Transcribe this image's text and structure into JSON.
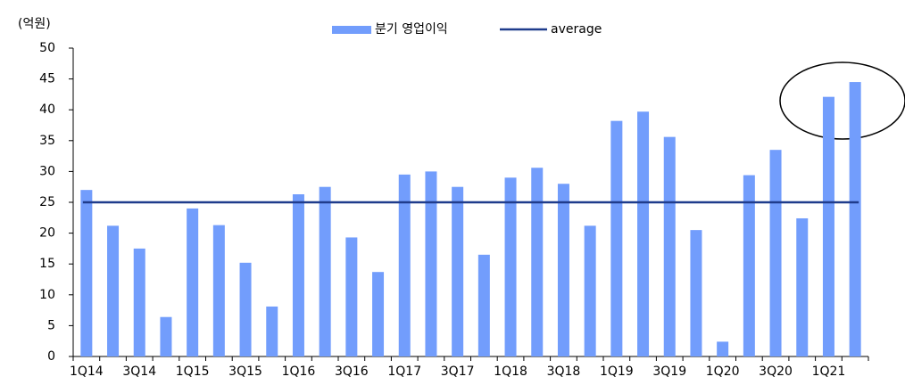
{
  "chart_data": {
    "type": "bar",
    "y_unit_label": "(억원)",
    "categories": [
      "1Q14",
      null,
      "3Q14",
      null,
      "1Q15",
      null,
      "3Q15",
      null,
      "1Q16",
      null,
      "3Q16",
      null,
      "1Q17",
      null,
      "3Q17",
      null,
      "1Q18",
      null,
      "3Q18",
      null,
      "1Q19",
      null,
      "3Q19",
      null,
      "1Q20",
      null,
      "3Q20",
      null,
      "1Q21",
      null
    ],
    "series": [
      {
        "name": "분기 영업이익",
        "color": "#729dfc",
        "values": [
          27,
          21.2,
          17.5,
          6.4,
          24,
          21.3,
          15.2,
          8.1,
          26.3,
          27.5,
          19.3,
          13.7,
          29.5,
          30,
          27.5,
          16.5,
          29,
          30.6,
          28,
          21.2,
          38.2,
          39.7,
          35.6,
          20.5,
          2.4,
          29.4,
          33.5,
          22.4,
          42.1,
          44.5
        ]
      }
    ],
    "average": {
      "name": "average",
      "value": 25,
      "color": "#1f3c8c"
    },
    "ylim": [
      0,
      50
    ],
    "yticks": [
      0,
      5,
      10,
      15,
      20,
      25,
      30,
      35,
      40,
      45,
      50
    ]
  }
}
